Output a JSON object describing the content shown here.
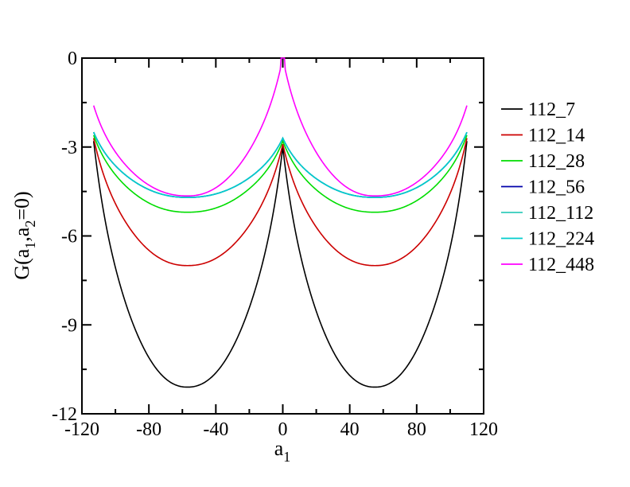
{
  "chart_data": {
    "type": "line",
    "xlabel": {
      "base": "a",
      "sub": "1"
    },
    "ylabel": {
      "prefix": "G(a",
      "sub1": "1",
      "mid": ",a",
      "sub2": "2",
      "suffix": "=0)"
    },
    "xlim": [
      -120,
      120
    ],
    "ylim": [
      -12,
      0
    ],
    "xticks": [
      -120,
      -80,
      -40,
      0,
      40,
      80,
      120
    ],
    "yticks": [
      0,
      -3,
      -6,
      -9,
      -12
    ],
    "grid": false,
    "legend_position": "right",
    "series": [
      {
        "name": "112_7",
        "color": "#000000",
        "min_value": -11.1,
        "edge_value": -2.8,
        "center_value": -3.0
      },
      {
        "name": "112_14",
        "color": "#cc0000",
        "min_value": -7.0,
        "edge_value": -2.7,
        "center_value": -2.9
      },
      {
        "name": "112_28",
        "color": "#00dd00",
        "min_value": -5.2,
        "edge_value": -2.6,
        "center_value": -2.8
      },
      {
        "name": "112_56",
        "color": "#0000aa",
        "min_value": -4.7,
        "edge_value": -2.5,
        "center_value": -2.7
      },
      {
        "name": "112_112",
        "color": "#33ccbb",
        "min_value": -4.7,
        "edge_value": -2.5,
        "center_value": -2.7
      },
      {
        "name": "112_224",
        "color": "#00cccc",
        "min_value": -4.7,
        "edge_value": -2.5,
        "center_value": -2.7
      },
      {
        "name": "112_448",
        "color": "#ff00ff",
        "min_value": -4.65,
        "edge_value": -1.6,
        "center_value": 0.0
      }
    ],
    "x_extent": [
      -113,
      110
    ],
    "min_positions": [
      -57,
      55
    ]
  }
}
